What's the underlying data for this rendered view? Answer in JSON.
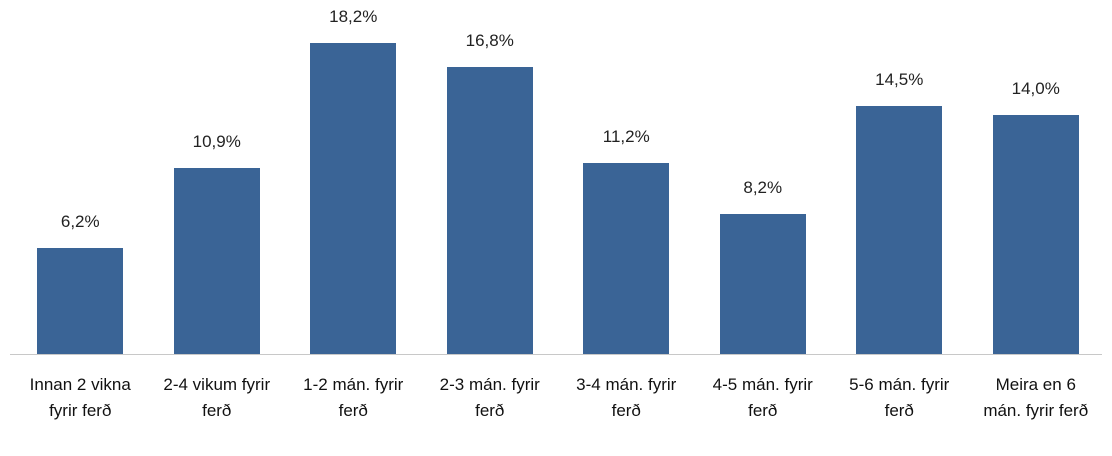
{
  "chart_data": {
    "type": "bar",
    "categories": [
      "Innan 2 vikna fyrir ferð",
      "2-4 vikum fyrir ferð",
      "1-2 mán. fyrir ferð",
      "2-3 mán. fyrir ferð",
      "3-4 mán. fyrir ferð",
      "4-5 mán. fyrir ferð",
      "5-6 mán. fyrir ferð",
      "Meira en 6 mán. fyrir ferð"
    ],
    "values": [
      6.2,
      10.9,
      18.2,
      16.8,
      11.2,
      8.2,
      14.5,
      14.0
    ],
    "value_labels": [
      "6,2%",
      "10,9%",
      "18,2%",
      "16,8%",
      "11,2%",
      "8,2%",
      "14,5%",
      "14,0%"
    ],
    "color": "#3a6496"
  }
}
